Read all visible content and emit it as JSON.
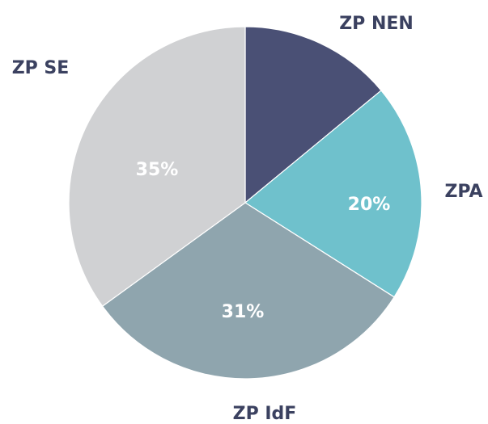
{
  "chart_data": {
    "type": "pie",
    "categories": [
      "ZP NEN",
      "ZPA",
      "ZP IdF",
      "ZP SE"
    ],
    "values": [
      14,
      20,
      31,
      35
    ],
    "value_labels": [
      null,
      "20%",
      "31%",
      "35%"
    ],
    "colors": [
      "#4a5075",
      "#6fc1cc",
      "#8fa5ae",
      "#d0d1d3"
    ]
  }
}
